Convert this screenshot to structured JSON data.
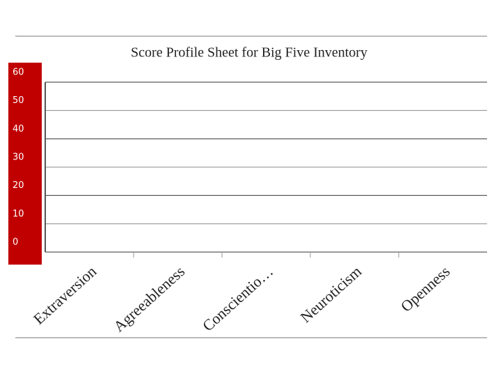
{
  "chart_data": {
    "type": "bar",
    "title": "Score Profile Sheet for Big Five Inventory",
    "categories": [
      "Extraversion",
      "Agreeableness",
      "Conscientio…",
      "Neuroticism",
      "Openness"
    ],
    "ylim": [
      0,
      60
    ],
    "yticks": [
      0,
      10,
      20,
      30,
      40,
      50,
      60
    ],
    "grid": true
  }
}
